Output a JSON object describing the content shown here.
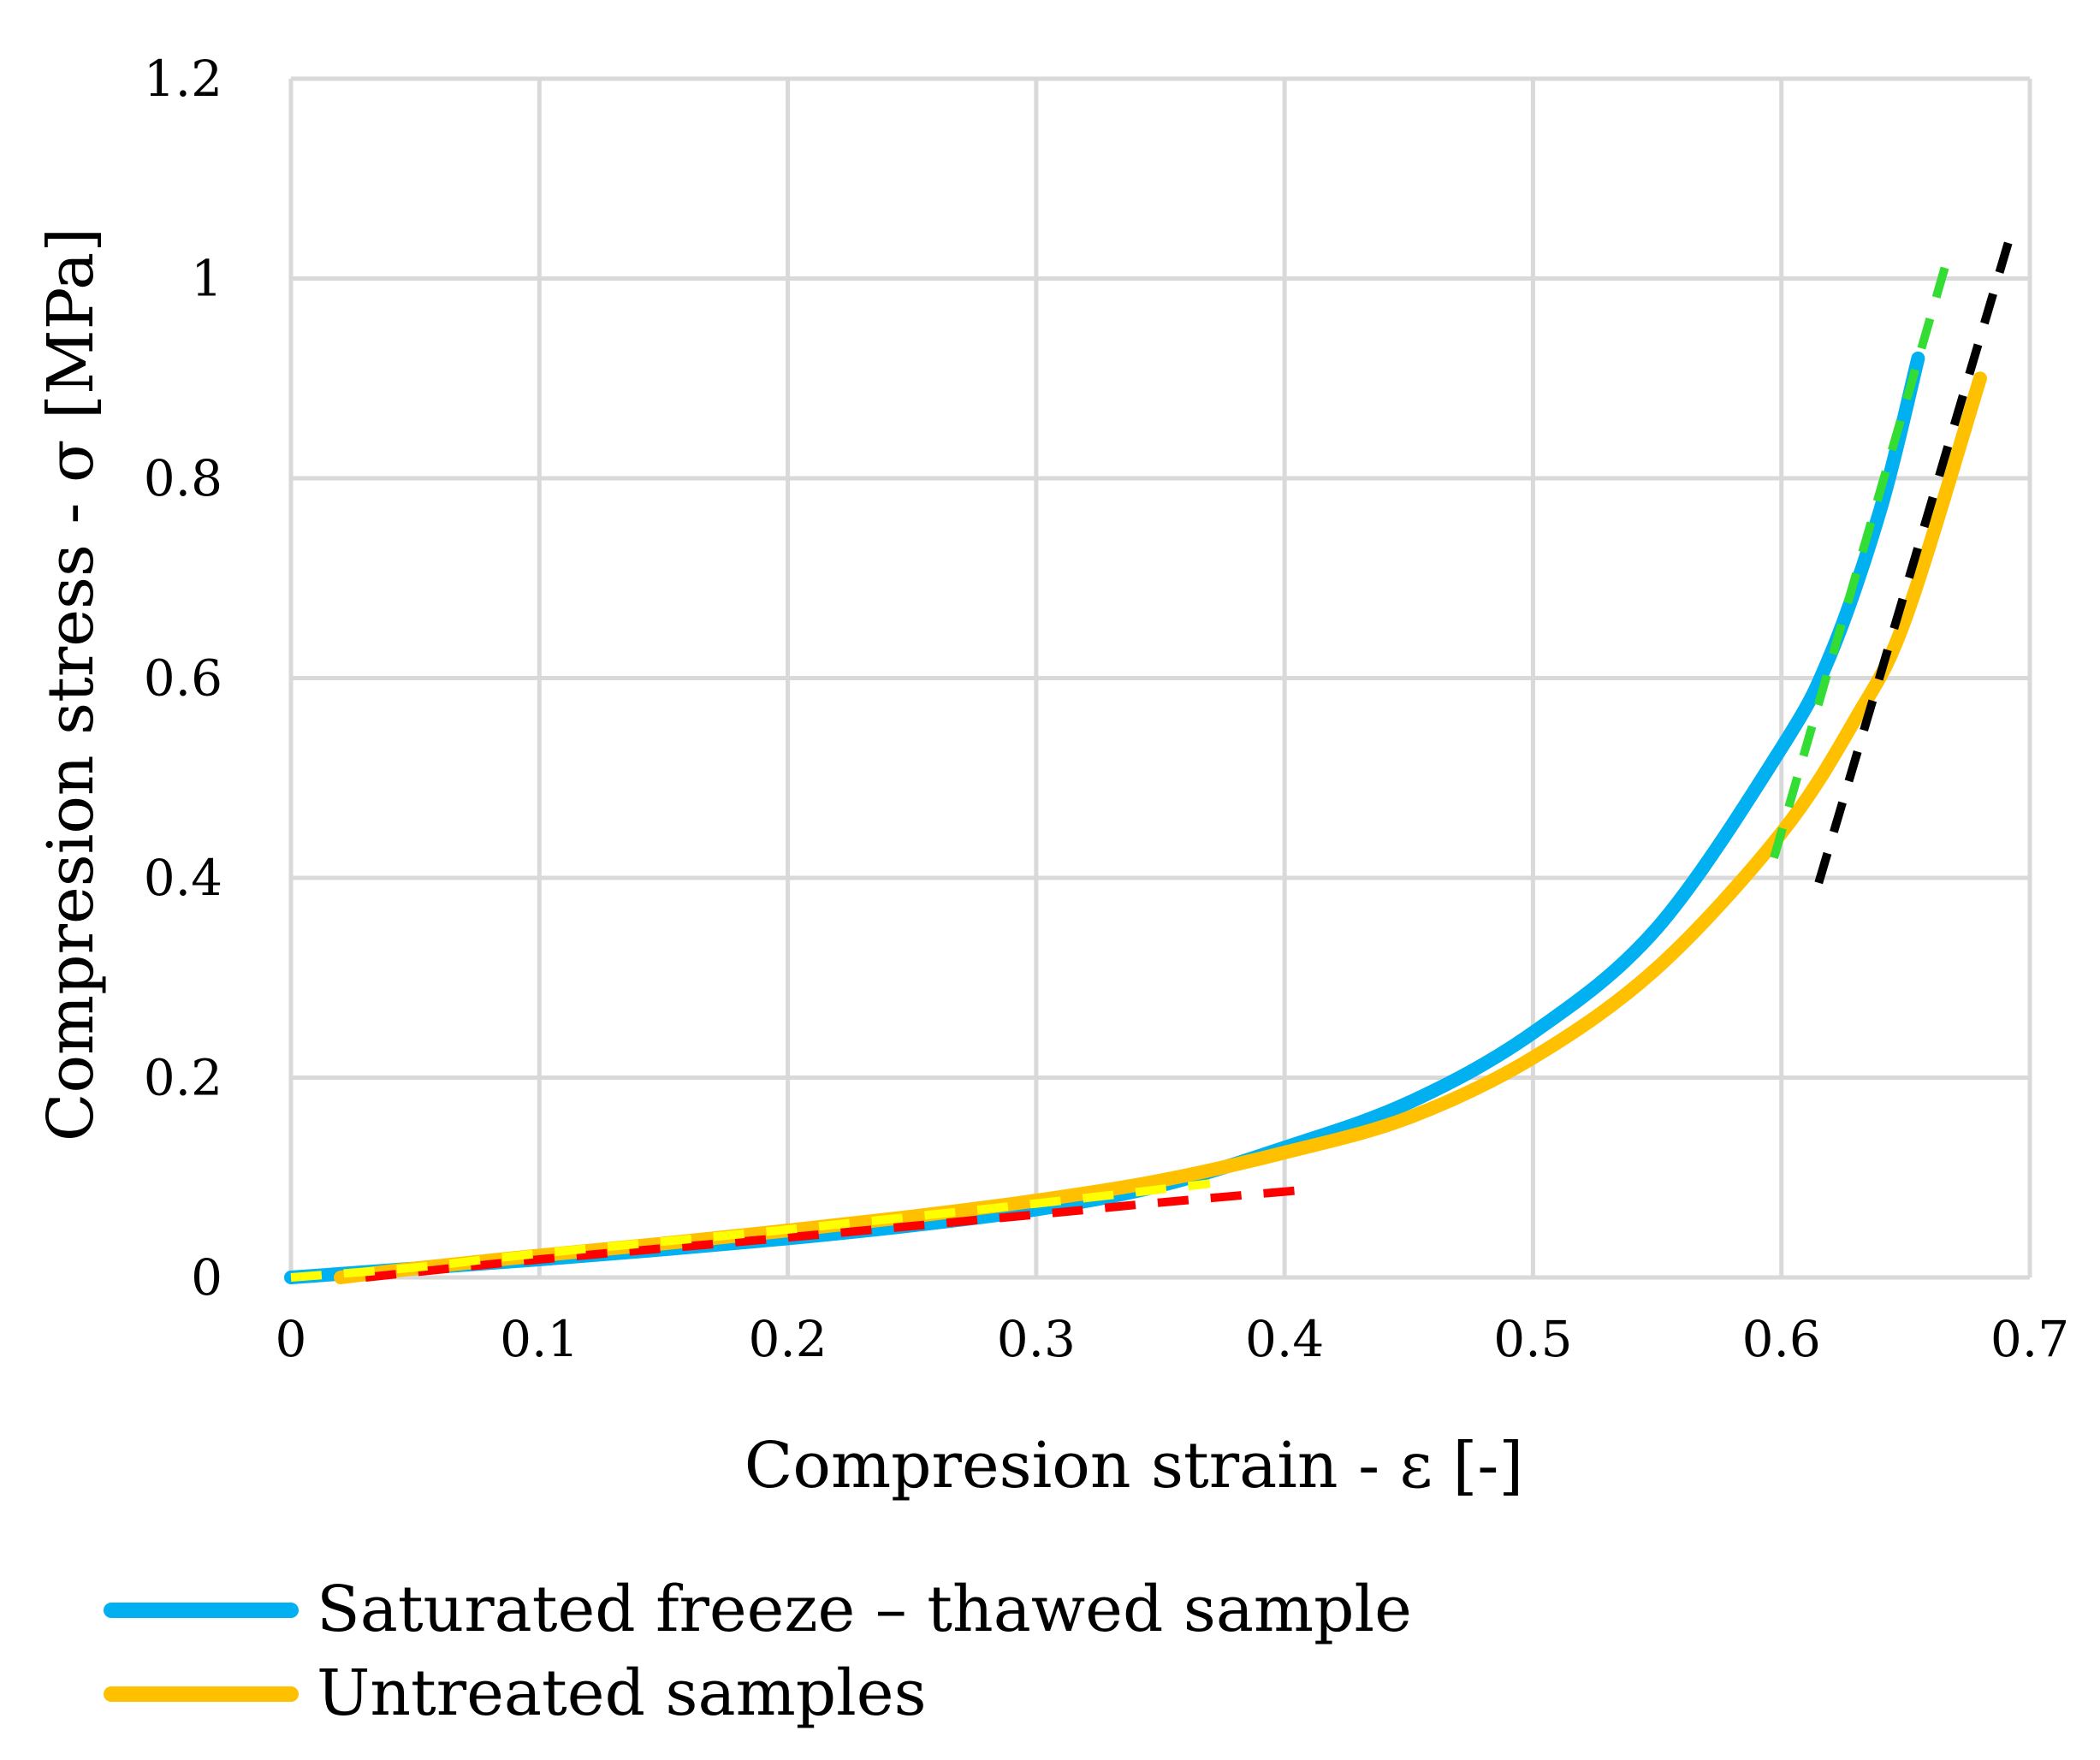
{
  "chart_data": {
    "type": "line",
    "title": "",
    "xlabel": "Compresion strain - ε [-]",
    "ylabel": "Compresion stress  - σ [MPa]",
    "xlim": [
      0,
      0.7
    ],
    "ylim": [
      0,
      1.2
    ],
    "xticks": [
      0,
      0.1,
      0.2,
      0.3,
      0.4,
      0.5,
      0.6,
      0.7
    ],
    "yticks": [
      0,
      0.2,
      0.4,
      0.6,
      0.8,
      1.0,
      1.2
    ],
    "xtick_labels": [
      "0",
      "0.1",
      "0.2",
      "0.3",
      "0.4",
      "0.5",
      "0.6",
      "0.7"
    ],
    "ytick_labels": [
      "0",
      "0.2",
      "0.4",
      "0.6",
      "0.8",
      "1",
      "1.2"
    ],
    "grid": true,
    "legend_position": "bottom-left",
    "series": [
      {
        "name": "Saturated freeze – thawed sample",
        "color": "#00b0f0",
        "style": "solid",
        "in_legend": true,
        "x": [
          0,
          0.05,
          0.1,
          0.15,
          0.2,
          0.25,
          0.3,
          0.35,
          0.4,
          0.45,
          0.5,
          0.55,
          0.6,
          0.62,
          0.64,
          0.655
        ],
        "y": [
          0,
          0.009,
          0.018,
          0.028,
          0.039,
          0.052,
          0.068,
          0.092,
          0.13,
          0.175,
          0.245,
          0.35,
          0.53,
          0.625,
          0.77,
          0.92
        ]
      },
      {
        "name": "Untreated samples",
        "color": "#ffc000",
        "style": "solid",
        "in_legend": true,
        "x": [
          0.02,
          0.05,
          0.1,
          0.15,
          0.2,
          0.25,
          0.3,
          0.35,
          0.4,
          0.45,
          0.5,
          0.55,
          0.6,
          0.63,
          0.65,
          0.68
        ],
        "y": [
          0,
          0.009,
          0.022,
          0.034,
          0.047,
          0.061,
          0.077,
          0.097,
          0.125,
          0.16,
          0.22,
          0.31,
          0.445,
          0.56,
          0.66,
          0.9
        ]
      },
      {
        "name": "fit-low-saturated",
        "color": "#ff0000",
        "style": "dashed",
        "in_legend": false,
        "x": [
          0.03,
          0.1,
          0.2,
          0.3,
          0.35,
          0.405
        ],
        "y": [
          0,
          0.018,
          0.04,
          0.063,
          0.075,
          0.087
        ]
      },
      {
        "name": "fit-low-untreated",
        "color": "#ffff00",
        "style": "dashed",
        "in_legend": false,
        "x": [
          0,
          0.05,
          0.1,
          0.2,
          0.3,
          0.37
        ],
        "y": [
          0,
          0.01,
          0.024,
          0.048,
          0.074,
          0.094
        ]
      },
      {
        "name": "fit-high-saturated",
        "color": "#33dd33",
        "style": "dashed",
        "in_legend": false,
        "x": [
          0.597,
          0.668
        ],
        "y": [
          0.42,
          1.03
        ]
      },
      {
        "name": "fit-high-untreated",
        "color": "#000000",
        "style": "dashed",
        "in_legend": false,
        "x": [
          0.615,
          0.693
        ],
        "y": [
          0.395,
          1.05
        ]
      }
    ]
  }
}
